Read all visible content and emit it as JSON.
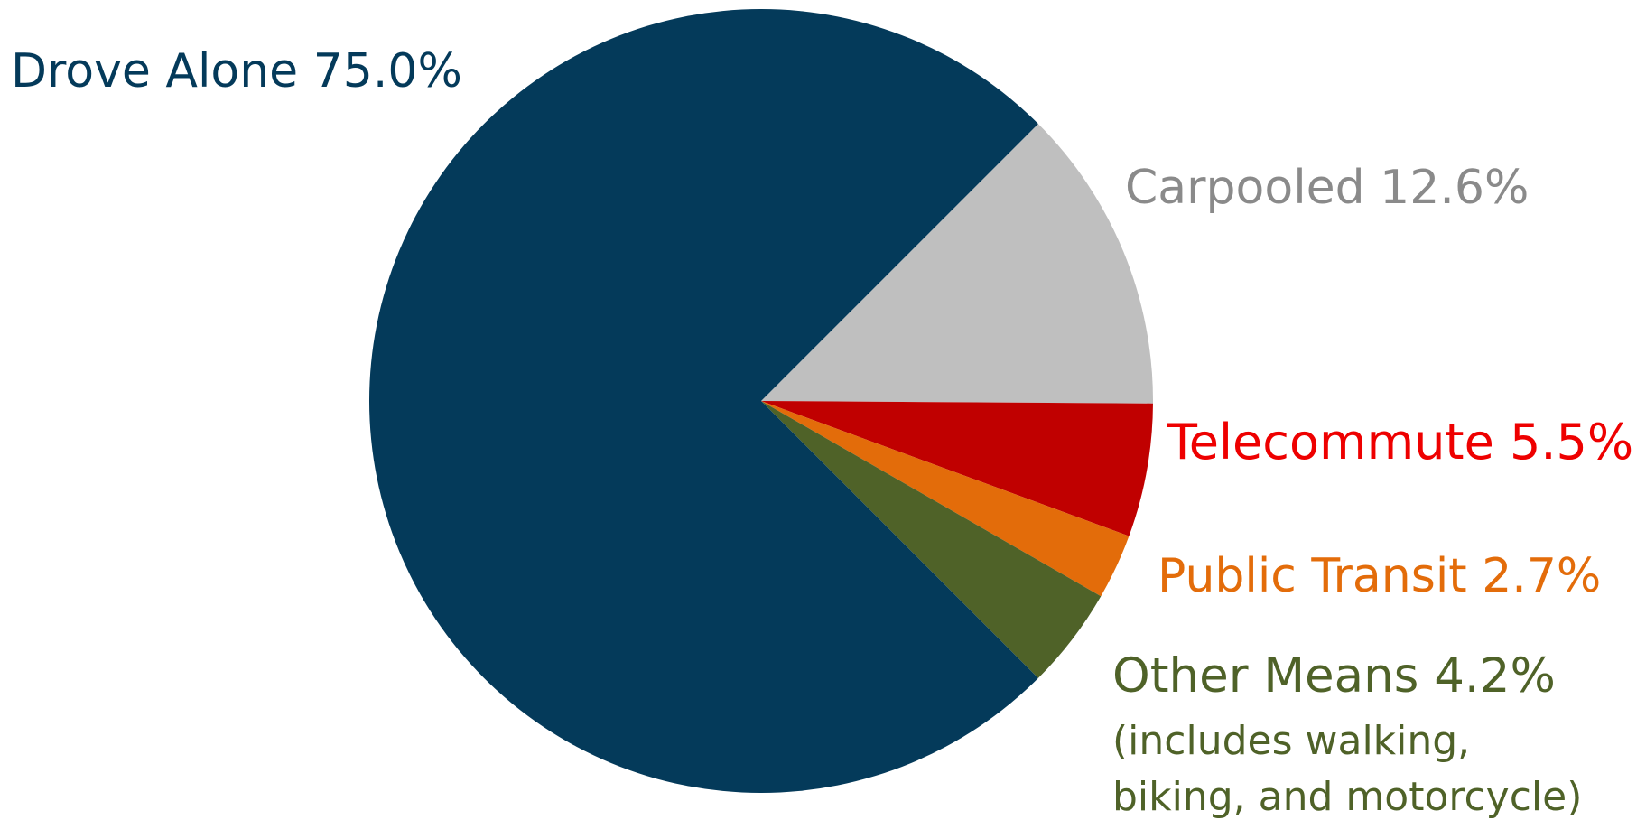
{
  "chart_data": {
    "type": "pie",
    "title": "",
    "slices": [
      {
        "label": "Drove Alone",
        "value": 75.0,
        "value_text": "75.0%",
        "color": "#043A5A"
      },
      {
        "label": "Carpooled",
        "value": 12.6,
        "value_text": "12.6%",
        "color": "#BFBFBF",
        "text_color": "#8A8A8A"
      },
      {
        "label": "Telecommute",
        "value": 5.5,
        "value_text": "5.5%",
        "color": "#C00000",
        "text_color": "#EE0000"
      },
      {
        "label": "Public Transit",
        "value": 2.7,
        "value_text": "2.7%",
        "color": "#E36C0A"
      },
      {
        "label": "Other Means",
        "value": 4.2,
        "value_text": "4.2%",
        "color": "#4F6228",
        "note_lines": [
          "(includes walking,",
          "biking, and motorcycle)"
        ]
      }
    ]
  }
}
